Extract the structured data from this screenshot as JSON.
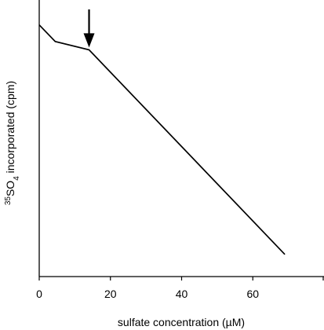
{
  "chart_data": {
    "type": "line",
    "title": "",
    "xlabel": "sulfate concentration (µM)",
    "ylabel_iso": "35",
    "ylabel_mid": "SO",
    "ylabel_sub": "4",
    "ylabel_rest": " incorporated (cpm)",
    "xlim": [
      0,
      80
    ],
    "ylim": [
      0,
      1
    ],
    "x_ticks": [
      0,
      20,
      40,
      60,
      80
    ],
    "x_tick_labels": [
      "0",
      "20",
      "40",
      "60",
      ""
    ],
    "y_ticks_labeled": false,
    "grid": false,
    "series": [
      {
        "x": [
          0,
          4.5,
          14,
          69
        ],
        "y": [
          0.91,
          0.85,
          0.82,
          0.08
        ],
        "color": "#000000"
      }
    ],
    "annotations": [
      {
        "type": "arrow-down",
        "x": 14,
        "color": "#000000"
      }
    ]
  }
}
